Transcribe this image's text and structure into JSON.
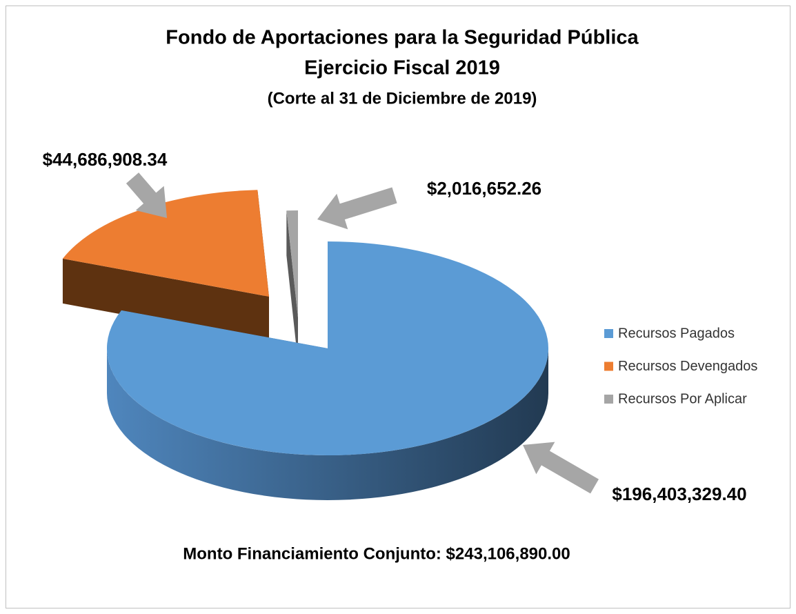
{
  "chart_data": {
    "type": "pie3d",
    "title": [
      "Fondo de Aportaciones para la Seguridad Pública",
      "Ejercicio Fiscal 2019"
    ],
    "subtitle": "(Corte al 31 de Diciembre de 2019)",
    "categories": [
      "Recursos Pagados",
      "Recursos Devengados",
      "Recursos Por Aplicar"
    ],
    "values": [
      196403329.4,
      44686908.34,
      2016652.26
    ],
    "value_labels": [
      "$196,403,329.40",
      "$44,686,908.34",
      "$2,016,652.26"
    ],
    "colors": [
      "#5b9bd5",
      "#ed7d31",
      "#a5a5a5"
    ],
    "legend": "right",
    "annotation": "Monto Financiamiento Conjunto: $243,106,890.00"
  }
}
